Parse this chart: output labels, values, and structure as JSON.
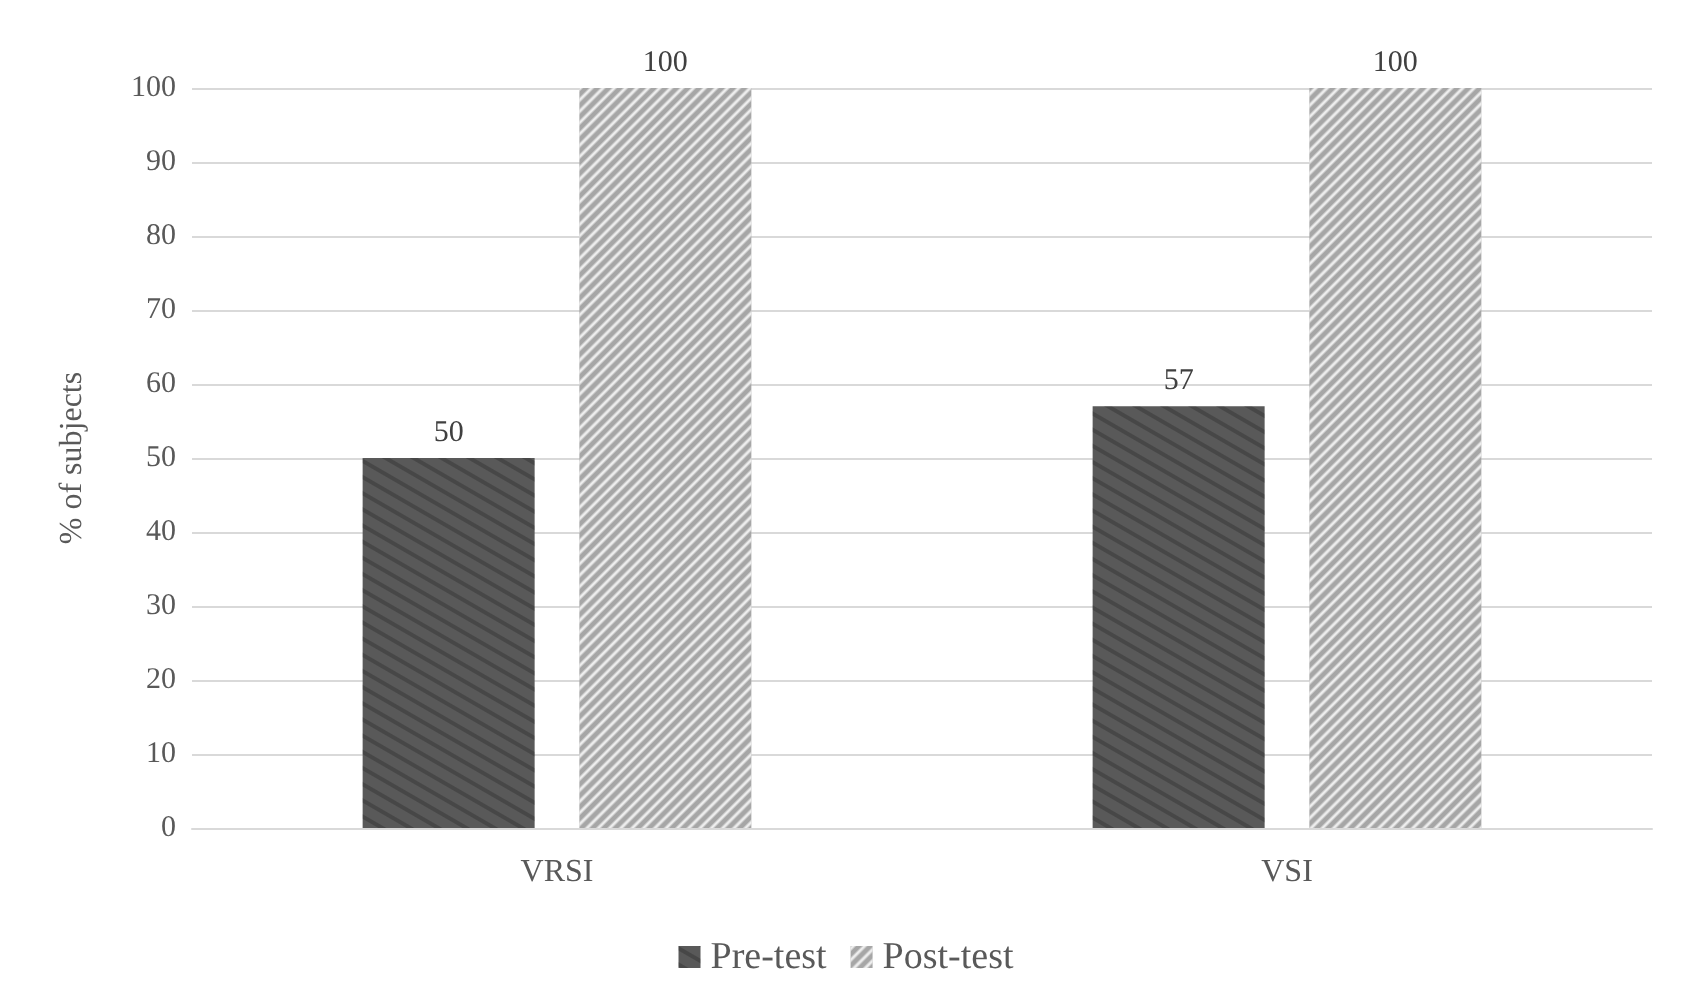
{
  "chart_data": {
    "type": "bar",
    "ylabel": "% of subjects",
    "categories": [
      "VRSI",
      "VSI"
    ],
    "series": [
      {
        "name": "Pre-test",
        "color": "#595959",
        "values": [
          50,
          57
        ]
      },
      {
        "name": "Post-test",
        "color": "#a6a6a6",
        "values": [
          100,
          100
        ]
      }
    ],
    "ylim": [
      0,
      100
    ],
    "yticks": [
      0,
      10,
      20,
      30,
      40,
      50,
      60,
      70,
      80,
      90,
      100
    ],
    "grid": "y",
    "legend": "bottom",
    "data_labels": true
  }
}
